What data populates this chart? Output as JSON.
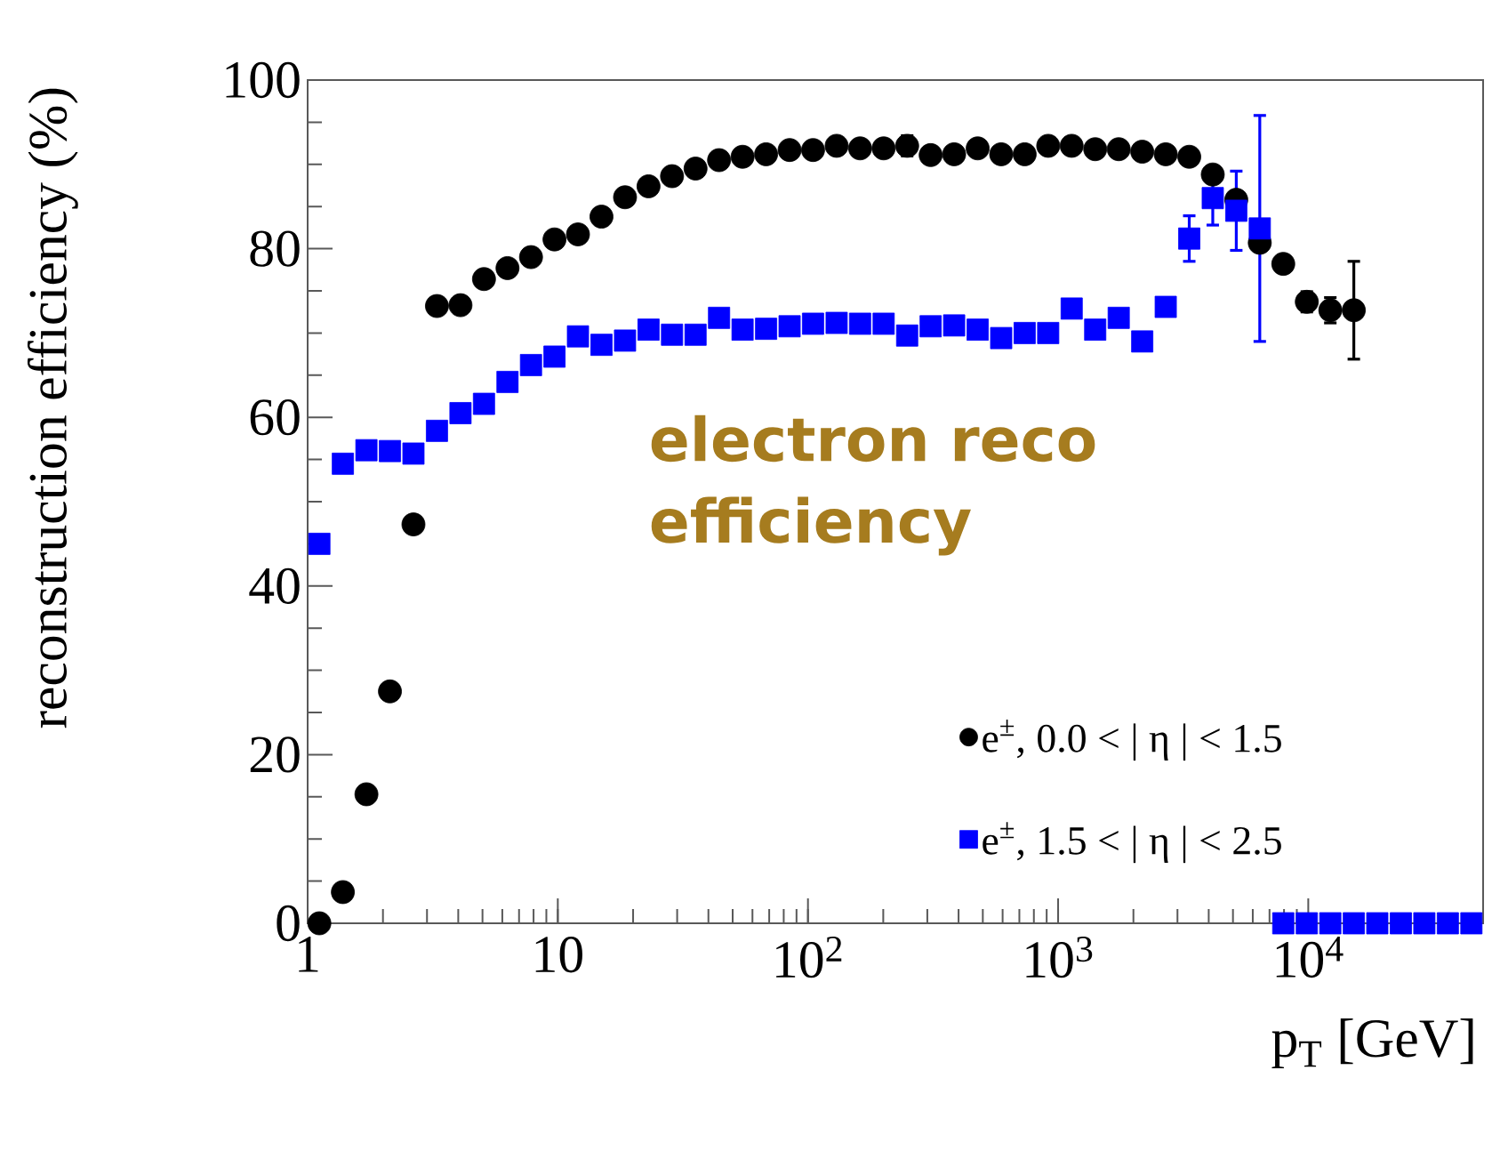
{
  "chart_data": {
    "type": "scatter",
    "xlabel": "p$_{T}$ [GeV]",
    "ylabel": "reconstruction efficiency (%)",
    "annotations": [
      "electron reco efficiency"
    ],
    "log": "x",
    "grid": false,
    "legend": "bottom right",
    "xlim": [
      1,
      50000
    ],
    "ylim": [
      0,
      100
    ],
    "xticks": [
      1,
      10,
      {
        "value": 100,
        "label": "10$^{2}$"
      },
      {
        "value": 1000,
        "label": "10$^{3}$"
      },
      {
        "value": 10000,
        "label": "10$^{4}$"
      }
    ],
    "yticks": [
      0,
      20,
      40,
      60,
      80,
      100
    ],
    "x": [
      1.114,
      1.383,
      1.718,
      2.133,
      2.648,
      3.288,
      4.083,
      5.069,
      6.294,
      7.815,
      9.7,
      12.04,
      14.95,
      18.57,
      23.05,
      28.62,
      35.54,
      44.12,
      54.78,
      68.02,
      84.45,
      104.8,
      130.2,
      161.6,
      200.7,
      249.2,
      309.4,
      384.1,
      476.9,
      592.2,
      735.2,
      912.8,
      1133,
      1407,
      1747,
      2169,
      2693,
      3344,
      4152,
      5155,
      6400,
      7946,
      9866,
      12250,
      15210,
      18880,
      23450,
      29110,
      36140,
      44880
    ],
    "series": [
      {
        "name": "e$^{±}$, 0.0 < | η | < 1.5",
        "color": "#000000",
        "marker": "circle",
        "values": [
          0,
          3.7,
          15.3,
          27.5,
          47.3,
          73.2,
          73.3,
          76.4,
          77.7,
          79.0,
          81.1,
          81.7,
          83.8,
          86.1,
          87.4,
          88.6,
          89.5,
          90.5,
          90.9,
          91.2,
          91.7,
          91.7,
          92.2,
          91.9,
          91.9,
          92.2,
          91.1,
          91.2,
          91.9,
          91.2,
          91.2,
          92.2,
          92.2,
          91.8,
          91.8,
          91.5,
          91.2,
          90.9,
          88.8,
          85.8,
          80.7,
          78.2,
          73.7,
          72.7,
          72.7,
          null,
          null,
          null,
          null,
          null
        ],
        "errors": [
          null,
          null,
          null,
          null,
          null,
          0.8,
          0.8,
          0.8,
          0.8,
          0.8,
          0.8,
          0.8,
          0.8,
          0.8,
          0.8,
          0.8,
          0.8,
          0.8,
          0.8,
          0.8,
          0.8,
          0.8,
          0.8,
          0.8,
          0.8,
          1.2,
          0.8,
          0.8,
          0.8,
          0.8,
          0.8,
          0.8,
          0.8,
          0.8,
          0.8,
          0.8,
          0.8,
          0.8,
          0.8,
          0.8,
          1.0,
          1.0,
          1.2,
          1.5,
          5.8,
          null,
          null,
          null,
          null,
          null
        ]
      },
      {
        "name": "e$^{±}$, 1.5 < | η | < 2.5",
        "color": "#0000ff",
        "marker": "square",
        "values": [
          45.0,
          54.5,
          56.1,
          56.0,
          55.7,
          58.4,
          60.5,
          61.6,
          64.2,
          66.2,
          67.2,
          69.6,
          68.6,
          69.1,
          70.4,
          69.8,
          69.8,
          71.8,
          70.4,
          70.5,
          70.8,
          71.1,
          71.2,
          71.1,
          71.1,
          69.7,
          70.8,
          70.9,
          70.4,
          69.4,
          70.0,
          70.0,
          72.9,
          70.4,
          71.8,
          69.0,
          73.1,
          81.2,
          86.0,
          84.5,
          82.4,
          0,
          0,
          0,
          0,
          0,
          0,
          0,
          0,
          0
        ],
        "errors": [
          null,
          0.9,
          0.9,
          0.9,
          0.9,
          0.9,
          0.9,
          0.9,
          0.9,
          0.9,
          0.9,
          0.9,
          0.9,
          0.9,
          0.9,
          0.9,
          0.9,
          0.9,
          0.9,
          0.9,
          0.9,
          0.9,
          0.9,
          0.9,
          0.9,
          0.9,
          0.9,
          0.9,
          0.9,
          0.9,
          0.9,
          0.9,
          0.9,
          0.9,
          0.9,
          0.9,
          0.9,
          2.7,
          3.2,
          4.7,
          13.4,
          null,
          null,
          null,
          null,
          null,
          null,
          null,
          null,
          null
        ]
      }
    ]
  }
}
